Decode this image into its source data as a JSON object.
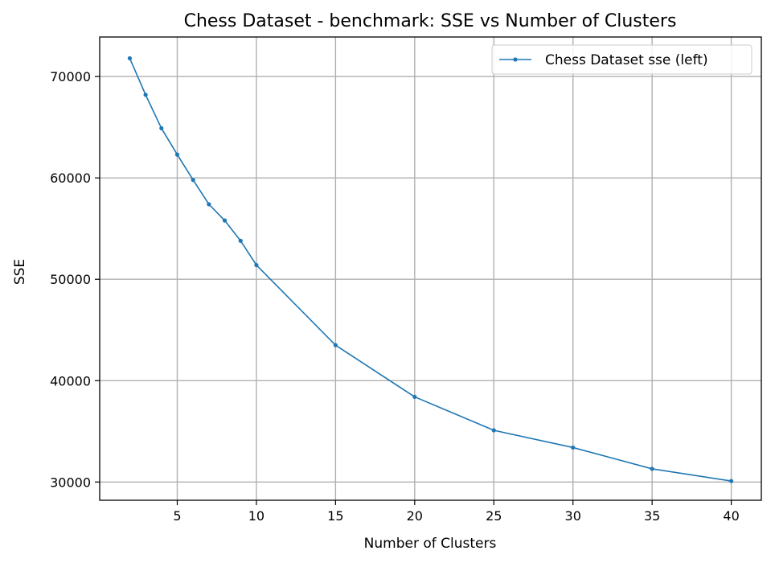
{
  "chart_data": {
    "type": "line",
    "title": "Chess Dataset - benchmark: SSE vs Number of Clusters",
    "xlabel": "Number of Clusters",
    "ylabel": "SSE",
    "xlim": [
      0.1,
      41.9
    ],
    "ylim": [
      28200,
      73900
    ],
    "xticks": [
      5,
      10,
      15,
      20,
      25,
      30,
      35,
      40
    ],
    "yticks": [
      30000,
      40000,
      50000,
      60000,
      70000
    ],
    "grid": true,
    "legend_position": "top-right",
    "series": [
      {
        "name": "Chess Dataset sse (left)",
        "color": "#1f77b4",
        "marker": "circle",
        "x": [
          2,
          3,
          4,
          5,
          6,
          7,
          8,
          9,
          10,
          15,
          20,
          25,
          30,
          35,
          40
        ],
        "y": [
          71800,
          68200,
          64900,
          62300,
          59800,
          57400,
          55800,
          53800,
          51400,
          43500,
          38400,
          35100,
          33400,
          31300,
          30100
        ]
      }
    ]
  }
}
